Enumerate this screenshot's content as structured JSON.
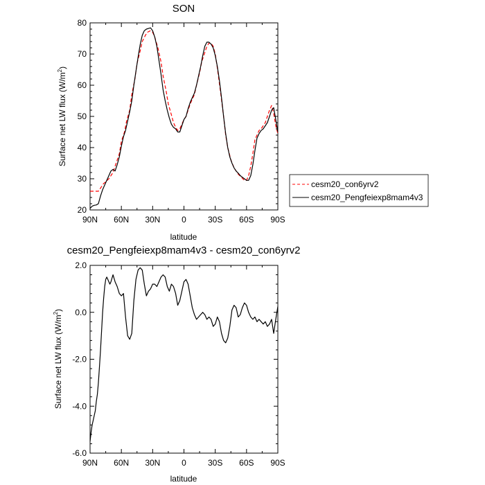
{
  "chart_data": [
    {
      "type": "line",
      "title": "SON",
      "xlabel": "latitude",
      "ylabel": "Surface net LW flux (W/m",
      "ylabel_sup": "2",
      "ylabel_close": ")",
      "xlim": [
        90,
        -90
      ],
      "ylim": [
        20,
        80
      ],
      "xticks": [
        90,
        60,
        30,
        0,
        -30,
        -60,
        -90
      ],
      "xtick_labels": [
        "90N",
        "60N",
        "30N",
        "0",
        "30S",
        "60S",
        "90S"
      ],
      "yticks": [
        20,
        30,
        40,
        50,
        60,
        70,
        80
      ],
      "ytick_labels": [
        "20",
        "30",
        "40",
        "50",
        "60",
        "70",
        "80"
      ],
      "legend": "right",
      "grid": false,
      "series": [
        {
          "name": "cesm20_con6yrv2",
          "color": "#ff0000",
          "dash": "dashed",
          "x": [
            90,
            87,
            85,
            82,
            80,
            77,
            75,
            72,
            70,
            68,
            65,
            62,
            60,
            57,
            55,
            52,
            50,
            47,
            45,
            42,
            40,
            37,
            35,
            32,
            30,
            28,
            25,
            22,
            20,
            17,
            15,
            12,
            10,
            8,
            6,
            4,
            2,
            0,
            -2,
            -4,
            -6,
            -8,
            -10,
            -12,
            -15,
            -17,
            -20,
            -22,
            -24,
            -26,
            -28,
            -30,
            -32,
            -35,
            -38,
            -40,
            -42,
            -45,
            -48,
            -50,
            -52,
            -55,
            -58,
            -60,
            -62,
            -64,
            -66,
            -68,
            -70,
            -72,
            -74,
            -76,
            -78,
            -80,
            -82,
            -84,
            -86,
            -88,
            -90
          ],
          "y": [
            26.0,
            26.0,
            26.0,
            26.0,
            27.0,
            28.5,
            29.0,
            30.0,
            31.0,
            32.0,
            35.0,
            38.0,
            42.0,
            45.0,
            48.5,
            52.0,
            57.0,
            62.0,
            67.0,
            71.0,
            74.0,
            76.0,
            77.0,
            77.5,
            77.0,
            75.5,
            72.0,
            67.5,
            63.0,
            58.0,
            54.0,
            50.5,
            48.0,
            46.5,
            45.5,
            46.0,
            47.5,
            49.0,
            50.0,
            52.0,
            54.0,
            55.5,
            57.0,
            60.0,
            64.0,
            67.5,
            70.5,
            72.5,
            73.5,
            73.5,
            72.5,
            70.0,
            65.5,
            58.0,
            50.0,
            44.0,
            40.0,
            36.0,
            33.5,
            32.5,
            31.5,
            30.5,
            29.5,
            29.5,
            31.0,
            34.0,
            38.0,
            42.5,
            44.0,
            45.5,
            46.0,
            47.0,
            48.0,
            50.0,
            52.0,
            53.5,
            51.0,
            47.0,
            44.5
          ]
        },
        {
          "name": "cesm20_Pengfeiexp8mam4v3",
          "color": "#000000",
          "dash": "solid",
          "x": [
            90,
            88,
            86,
            84,
            82,
            80,
            78,
            76,
            74,
            72,
            70,
            68,
            66,
            64,
            62,
            60,
            58,
            56,
            54,
            52,
            50,
            48,
            46,
            44,
            42,
            40,
            38,
            36,
            34,
            32,
            30,
            28,
            26,
            24,
            22,
            20,
            18,
            16,
            14,
            12,
            10,
            8,
            6,
            4,
            2,
            0,
            -2,
            -4,
            -6,
            -8,
            -10,
            -12,
            -14,
            -16,
            -18,
            -20,
            -22,
            -24,
            -26,
            -28,
            -30,
            -32,
            -34,
            -36,
            -38,
            -40,
            -42,
            -44,
            -46,
            -48,
            -50,
            -52,
            -54,
            -56,
            -58,
            -60,
            -62,
            -64,
            -66,
            -68,
            -70,
            -72,
            -74,
            -76,
            -78,
            -80,
            -82,
            -84,
            -86,
            -88,
            -90
          ],
          "y": [
            20.5,
            21.2,
            21.5,
            21.6,
            22.0,
            24.5,
            26.5,
            28.0,
            29.5,
            31.0,
            32.5,
            33.0,
            32.5,
            34.5,
            37.0,
            40.5,
            43.5,
            45.5,
            48.5,
            51.5,
            55.0,
            60.0,
            64.5,
            69.0,
            73.0,
            76.0,
            77.5,
            78.0,
            78.2,
            78.4,
            77.5,
            75.5,
            72.5,
            68.0,
            63.5,
            58.5,
            55.0,
            52.0,
            49.5,
            47.5,
            46.5,
            46.0,
            45.0,
            45.0,
            47.0,
            49.0,
            50.0,
            52.5,
            54.5,
            56.0,
            57.5,
            60.0,
            63.0,
            66.0,
            69.5,
            72.5,
            73.8,
            73.8,
            73.2,
            72.0,
            69.5,
            66.0,
            61.5,
            56.0,
            50.0,
            44.5,
            40.0,
            37.0,
            35.0,
            33.5,
            32.5,
            31.8,
            31.0,
            30.5,
            30.0,
            29.5,
            29.5,
            31.0,
            34.5,
            39.0,
            43.0,
            44.5,
            45.5,
            46.0,
            47.0,
            48.0,
            50.0,
            52.0,
            52.8,
            49.0,
            45.0
          ]
        }
      ]
    },
    {
      "type": "line",
      "title": "cesm20_Pengfeiexp8mam4v3 - cesm20_con6yrv2",
      "xlabel": "latitude",
      "ylabel": "Surface net LW flux (W/m",
      "ylabel_sup": "2",
      "ylabel_close": ")",
      "xlim": [
        90,
        -90
      ],
      "ylim": [
        -6,
        2
      ],
      "xticks": [
        90,
        60,
        30,
        0,
        -30,
        -60,
        -90
      ],
      "xtick_labels": [
        "90N",
        "60N",
        "30N",
        "0",
        "30S",
        "60S",
        "90S"
      ],
      "yticks": [
        -6,
        -4,
        -2,
        0,
        2
      ],
      "ytick_labels": [
        "-6.0",
        "-4.0",
        "-2.0",
        "0.0",
        "2.0"
      ],
      "grid": false,
      "series": [
        {
          "color": "#000000",
          "dash": "solid",
          "x": [
            90,
            89,
            88,
            87,
            86,
            85,
            84,
            83,
            82,
            81,
            80,
            79,
            78,
            77,
            76,
            75,
            74,
            73,
            72,
            71,
            70,
            68,
            66,
            64,
            62,
            60,
            58,
            56,
            54,
            52,
            50,
            48,
            46,
            44,
            42,
            40,
            38,
            36,
            34,
            32,
            30,
            28,
            26,
            24,
            22,
            20,
            18,
            16,
            14,
            12,
            10,
            8,
            6,
            4,
            2,
            0,
            -2,
            -4,
            -6,
            -8,
            -10,
            -12,
            -14,
            -16,
            -18,
            -20,
            -22,
            -24,
            -26,
            -28,
            -30,
            -32,
            -34,
            -36,
            -38,
            -40,
            -42,
            -44,
            -46,
            -48,
            -50,
            -52,
            -54,
            -56,
            -58,
            -60,
            -62,
            -64,
            -66,
            -68,
            -70,
            -72,
            -74,
            -76,
            -78,
            -80,
            -82,
            -84,
            -86,
            -88,
            -90
          ],
          "y": [
            -5.5,
            -5.1,
            -4.8,
            -4.6,
            -4.4,
            -4.2,
            -3.8,
            -3.5,
            -3.0,
            -2.3,
            -1.6,
            -0.8,
            0.0,
            0.6,
            1.1,
            1.4,
            1.5,
            1.4,
            1.3,
            1.2,
            1.3,
            1.6,
            1.3,
            1.1,
            0.8,
            0.7,
            0.8,
            -0.2,
            -1.0,
            -1.15,
            -0.9,
            0.5,
            1.4,
            1.8,
            1.9,
            1.8,
            1.2,
            0.7,
            0.9,
            1.0,
            1.2,
            1.2,
            1.1,
            1.3,
            1.5,
            1.6,
            1.5,
            1.1,
            0.9,
            1.2,
            1.1,
            0.8,
            0.3,
            0.5,
            0.9,
            1.3,
            1.4,
            1.2,
            0.7,
            0.2,
            -0.1,
            -0.3,
            -0.2,
            -0.1,
            0.0,
            -0.1,
            -0.3,
            -0.2,
            -0.3,
            -0.6,
            -0.5,
            -0.2,
            -0.4,
            -0.9,
            -1.2,
            -1.3,
            -1.1,
            -0.6,
            0.1,
            0.3,
            0.2,
            -0.2,
            -0.1,
            0.2,
            0.4,
            0.3,
            0.0,
            -0.2,
            -0.3,
            -0.2,
            -0.4,
            -0.3,
            -0.4,
            -0.5,
            -0.4,
            -0.6,
            -0.5,
            -0.3,
            -0.9,
            -0.3,
            0.25
          ]
        }
      ]
    }
  ]
}
